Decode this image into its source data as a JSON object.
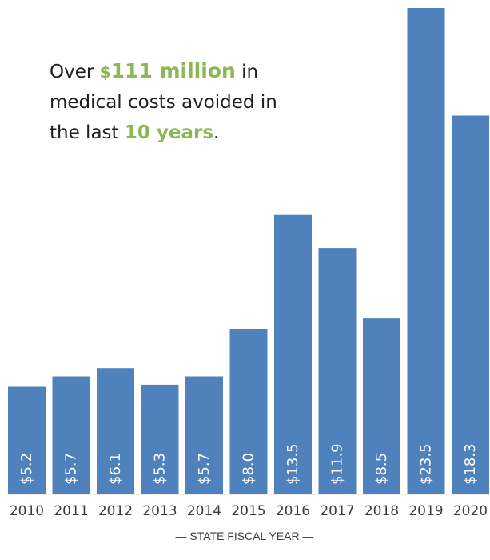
{
  "chart_data": {
    "type": "bar",
    "categories": [
      "2010",
      "2011",
      "2012",
      "2013",
      "2014",
      "2015",
      "2016",
      "2017",
      "2018",
      "2019",
      "2020"
    ],
    "values": [
      5.2,
      5.7,
      6.1,
      5.3,
      5.7,
      8.0,
      13.5,
      11.9,
      8.5,
      23.5,
      18.3
    ],
    "data_labels": [
      "$5.2",
      "$5.7",
      "$6.1",
      "$5.3",
      "$5.7",
      "$8.0",
      "$13.5",
      "$11.9",
      "$8.5",
      "$23.5",
      "$18.3"
    ],
    "xlabel": "— STATE FISCAL YEAR —",
    "ylabel": "",
    "ylim": [
      0,
      23.5
    ],
    "grid": false,
    "bar_color": "#4f81bd",
    "label_color": "#ffffff"
  },
  "callout": {
    "line1_pre": "Over ",
    "dollar": "$",
    "amount": "111 million",
    "line1_post": " in",
    "line2": "medical costs avoided in",
    "line3_pre": "the last ",
    "years": "10 years",
    "line3_post": ".",
    "highlight_color": "#8db654"
  }
}
